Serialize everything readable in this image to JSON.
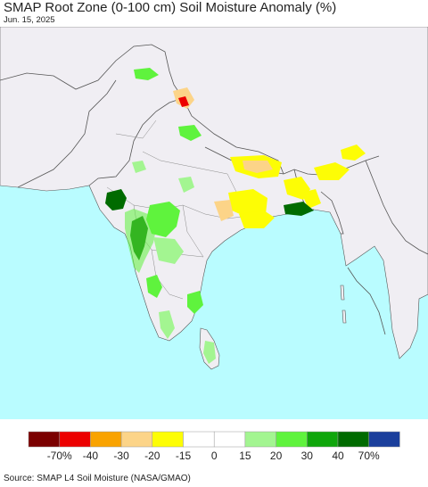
{
  "title": "SMAP Root Zone (0-100 cm) Soil Moisture Anomaly (%)",
  "date": "Jun. 15, 2025",
  "source": "Source: SMAP L4 Soil Moisture (NASA/GMAO)",
  "colors": {
    "ocean": "#b9fcff",
    "land": "#f0eef3",
    "border": "#555555"
  },
  "legend": {
    "bins": [
      {
        "color": "#7b0000"
      },
      {
        "color": "#ec0000"
      },
      {
        "color": "#f9a300"
      },
      {
        "color": "#fcd488"
      },
      {
        "color": "#fdfd05"
      },
      {
        "color": "#ffffff"
      },
      {
        "color": "#ffffff"
      },
      {
        "color": "#a3f591"
      },
      {
        "color": "#5ff33d"
      },
      {
        "color": "#0fa60b"
      },
      {
        "color": "#006b00"
      },
      {
        "color": "#1b3f9c"
      }
    ],
    "labels": [
      "-70%",
      "-40",
      "-30",
      "-20",
      "-15",
      "0",
      "15",
      "20",
      "30",
      "40",
      "70%"
    ]
  }
}
